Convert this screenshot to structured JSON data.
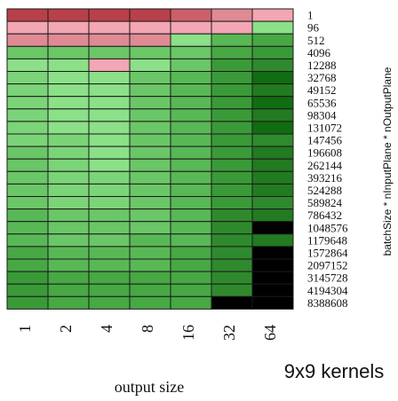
{
  "chart_data": {
    "type": "heatmap",
    "xlabel": "output size",
    "ylabel": "batchSize * nInputPlane * nOutputPlane",
    "caption": "9x9 kernels",
    "x_categories": [
      "1",
      "2",
      "4",
      "8",
      "16",
      "32",
      "64"
    ],
    "y_categories": [
      "1",
      "96",
      "512",
      "4096",
      "12288",
      "32768",
      "49152",
      "65536",
      "98304",
      "131072",
      "147456",
      "196608",
      "262144",
      "393216",
      "524288",
      "589824",
      "786432",
      "1048576",
      "1179648",
      "1572864",
      "2097152",
      "3145728",
      "4194304",
      "8388608"
    ],
    "colors": {
      "R3": "#b8404a",
      "R2": "#cc606a",
      "R1": "#df8a95",
      "P": "#f3a6b3",
      "GL": "#8be088",
      "G1": "#7cd478",
      "G2": "#6bc667",
      "G3": "#59b856",
      "G4": "#47a844",
      "G5": "#3a9a38",
      "G6": "#2f8a2d",
      "G7": "#227b20",
      "G8": "#116d11",
      "K": "#000000"
    },
    "cells": [
      [
        "R3",
        "R3",
        "R3",
        "R3",
        "R2",
        "R1",
        "P"
      ],
      [
        "P",
        "P",
        "P",
        "P",
        "P",
        "P",
        "GL"
      ],
      [
        "R1",
        "R1",
        "R1",
        "R1",
        "GL",
        "G3",
        "G4"
      ],
      [
        "G2",
        "G2",
        "G2",
        "G2",
        "G2",
        "G4",
        "G5"
      ],
      [
        "GL",
        "GL",
        "P",
        "GL",
        "G2",
        "G5",
        "G6"
      ],
      [
        "G1",
        "GL",
        "GL",
        "G2",
        "G3",
        "G5",
        "G8"
      ],
      [
        "G1",
        "GL",
        "GL",
        "G2",
        "G3",
        "G5",
        "G7"
      ],
      [
        "G1",
        "GL",
        "GL",
        "G2",
        "G3",
        "G5",
        "G8"
      ],
      [
        "G1",
        "GL",
        "GL",
        "G2",
        "G3",
        "G5",
        "G7"
      ],
      [
        "G1",
        "GL",
        "GL",
        "G2",
        "G3",
        "G5",
        "G8"
      ],
      [
        "G1",
        "G1",
        "GL",
        "G2",
        "G3",
        "G5",
        "G6"
      ],
      [
        "G2",
        "G1",
        "GL",
        "G2",
        "G3",
        "G5",
        "G7"
      ],
      [
        "G2",
        "G1",
        "GL",
        "G2",
        "G3",
        "G5",
        "G7"
      ],
      [
        "G2",
        "G1",
        "G1",
        "G2",
        "G3",
        "G5",
        "G7"
      ],
      [
        "G2",
        "G1",
        "G1",
        "G2",
        "G3",
        "G5",
        "G7"
      ],
      [
        "G2",
        "G1",
        "G1",
        "G2",
        "G3",
        "G5",
        "G6"
      ],
      [
        "G3",
        "G2",
        "G2",
        "G2",
        "G3",
        "G6",
        "G7"
      ],
      [
        "G3",
        "G2",
        "G2",
        "G2",
        "G3",
        "G6",
        "K"
      ],
      [
        "G3",
        "G2",
        "G2",
        "G3",
        "G3",
        "G6",
        "G7"
      ],
      [
        "G4",
        "G3",
        "G3",
        "G3",
        "G4",
        "G6",
        "K"
      ],
      [
        "G4",
        "G3",
        "G3",
        "G3",
        "G4",
        "G6",
        "K"
      ],
      [
        "G5",
        "G4",
        "G4",
        "G4",
        "G4",
        "G6",
        "K"
      ],
      [
        "G5",
        "G4",
        "G4",
        "G4",
        "G4",
        "G6",
        "K"
      ],
      [
        "G5",
        "G4",
        "G4",
        "G4",
        "G4",
        "K",
        "K"
      ]
    ]
  }
}
